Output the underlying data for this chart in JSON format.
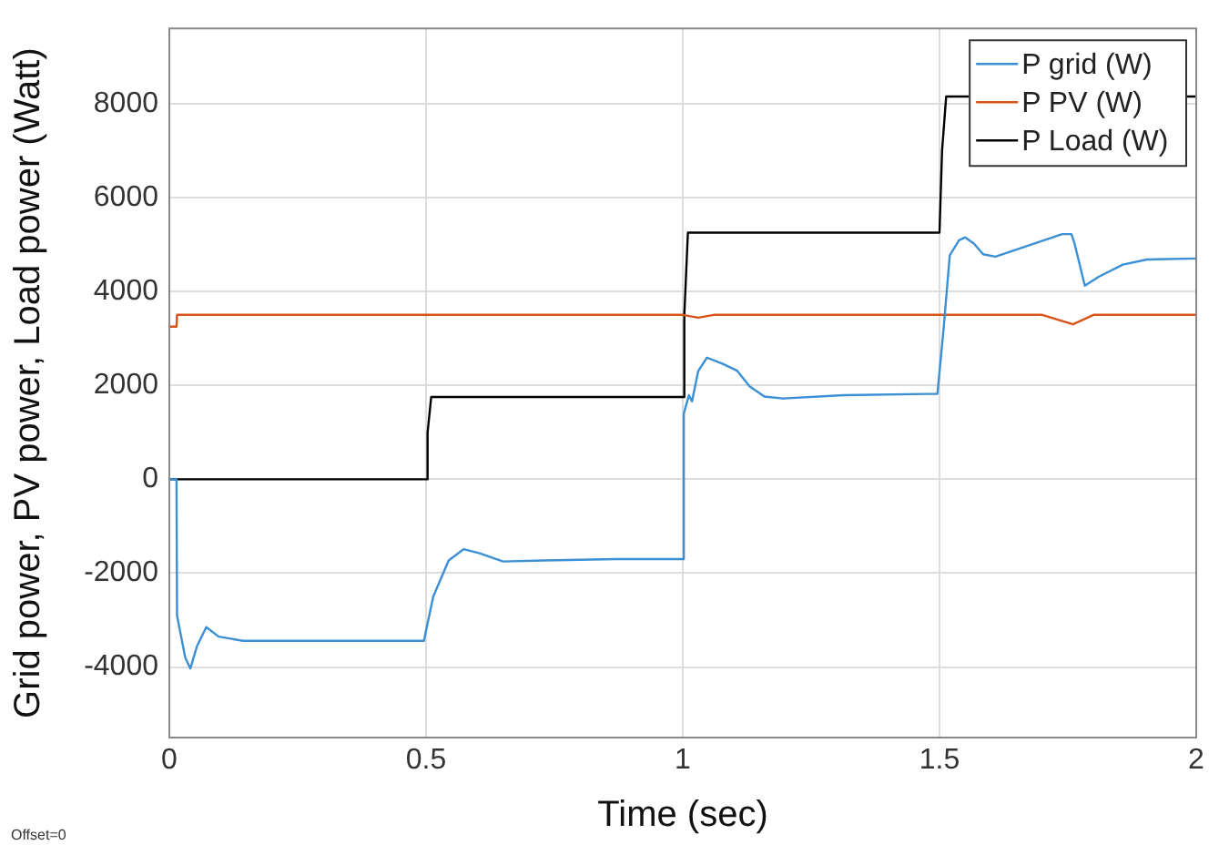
{
  "chart_data": {
    "type": "line",
    "xlabel": "Time (sec)",
    "ylabel": "Grid power, PV power, Load power (Watt)",
    "xlim": [
      0,
      2
    ],
    "xticks": [
      0,
      0.5,
      1,
      1.5,
      2
    ],
    "ylim": [
      -5500,
      9600
    ],
    "yticks": [
      -4000,
      -2000,
      0,
      2000,
      4000,
      6000,
      8000
    ],
    "grid": true,
    "legend": "top right",
    "marker": "none",
    "line_style": "solid",
    "annotations": [
      "Offset=0"
    ],
    "series": [
      {
        "name": "P grid (W)",
        "color": "#3b8fd4",
        "x": [
          0,
          0.014,
          0.015,
          0.031,
          0.041,
          0.054,
          0.072,
          0.096,
          0.143,
          0.2,
          0.32,
          0.496,
          0.5,
          0.514,
          0.544,
          0.573,
          0.603,
          0.65,
          0.73,
          0.87,
          1.0,
          1.002,
          1.012,
          1.018,
          1.03,
          1.047,
          1.077,
          1.106,
          1.13,
          1.159,
          1.195,
          1.313,
          1.496,
          1.508,
          1.52,
          1.538,
          1.55,
          1.567,
          1.585,
          1.609,
          1.668,
          1.739,
          1.757,
          1.763,
          1.783,
          1.81,
          1.857,
          1.904,
          2.0
        ],
        "values": [
          0,
          0,
          -2900,
          -3800,
          -4030,
          -3550,
          -3150,
          -3350,
          -3440,
          -3440,
          -3440,
          -3440,
          -3220,
          -2500,
          -1730,
          -1490,
          -1570,
          -1750,
          -1730,
          -1700,
          -1700,
          1400,
          1790,
          1660,
          2300,
          2590,
          2460,
          2310,
          1980,
          1760,
          1720,
          1790,
          1820,
          3210,
          4770,
          5090,
          5150,
          5020,
          4790,
          4740,
          4960,
          5220,
          5220,
          5020,
          4120,
          4310,
          4570,
          4680,
          4700
        ]
      },
      {
        "name": "P PV (W)",
        "color": "#d95319",
        "x": [
          0,
          0.014,
          0.015,
          1.0,
          1.03,
          1.06,
          1.7,
          1.76,
          1.8,
          2.0
        ],
        "values": [
          3250,
          3250,
          3500,
          3500,
          3440,
          3500,
          3500,
          3300,
          3500,
          3500
        ]
      },
      {
        "name": "P Load (W)",
        "color": "#000000",
        "x": [
          0,
          0.5,
          0.503,
          0.51,
          1.0,
          1.003,
          1.01,
          1.5,
          1.505,
          1.513,
          2.0
        ],
        "values": [
          0,
          0,
          1000,
          1750,
          1750,
          3500,
          5250,
          5250,
          7000,
          8150,
          8150
        ]
      }
    ]
  }
}
